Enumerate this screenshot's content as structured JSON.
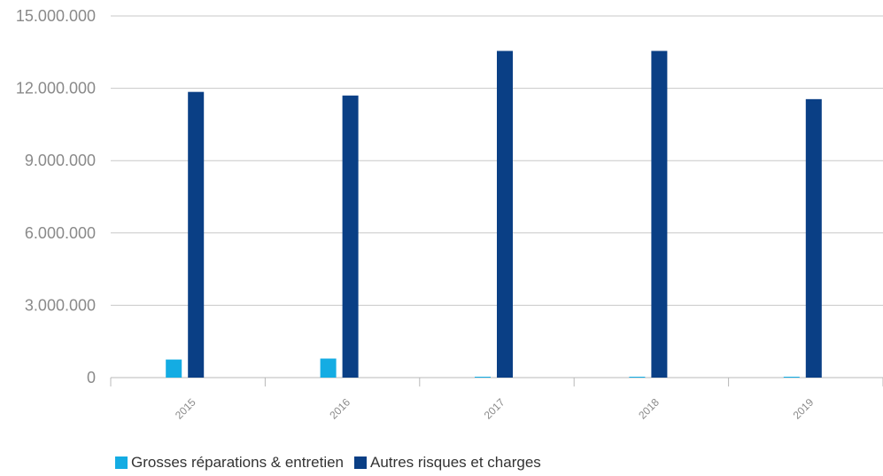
{
  "chart_data": {
    "type": "bar",
    "categories": [
      "2015",
      "2016",
      "2017",
      "2018",
      "2019"
    ],
    "series": [
      {
        "name": "Grosses réparations & entretien",
        "values": [
          750000,
          790000,
          0,
          0,
          0
        ],
        "color": "#14ace3"
      },
      {
        "name": "Autres risques et charges",
        "values": [
          11850000,
          11700000,
          13550000,
          13550000,
          11550000
        ],
        "color": "#0a3f85"
      }
    ],
    "ylim": [
      0,
      15000000
    ],
    "yticks": [
      0,
      3000000,
      6000000,
      9000000,
      12000000,
      15000000
    ],
    "ytick_labels": [
      "0",
      "3.000.000",
      "6.000.000",
      "9.000.000",
      "12.000.000",
      "15.000.000"
    ],
    "title": "",
    "xlabel": "",
    "ylabel": "",
    "grid": true,
    "legend_position": "bottom-left"
  }
}
